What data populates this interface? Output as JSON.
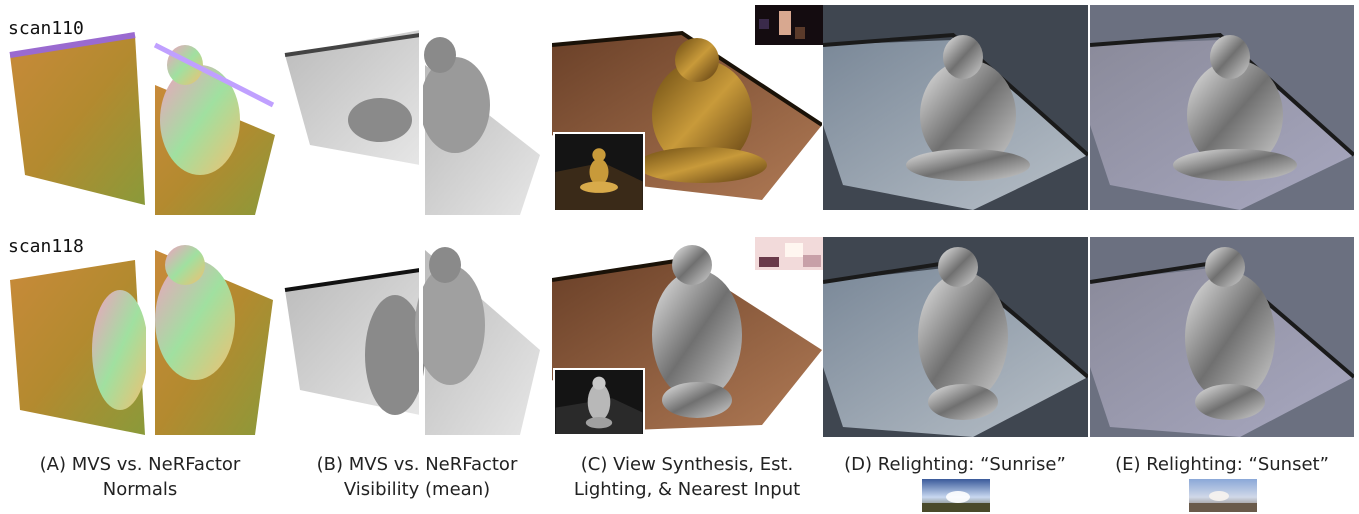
{
  "figure": {
    "rows": [
      {
        "label": "scan110"
      },
      {
        "label": "scan118"
      }
    ],
    "captions": [
      {
        "line1": "(A) MVS vs. NeRFactor",
        "line2": "Normals"
      },
      {
        "line1": "(B) MVS vs. NeRFactor",
        "line2": "Visibility (mean)"
      },
      {
        "line1": "(C) View Synthesis, Est.",
        "line2": "Lighting, & Nearest Input"
      },
      {
        "line1": "(D) Relighting: “Sunrise”",
        "line2": ""
      },
      {
        "line1": "(E) Relighting: “Sunset”",
        "line2": ""
      }
    ],
    "colors": {
      "relight_bg_sunrise": "#3f4650",
      "relight_bg_sunset": "#6b7080",
      "gold": "#a87a2a",
      "clay": "#8a5a3a"
    }
  }
}
